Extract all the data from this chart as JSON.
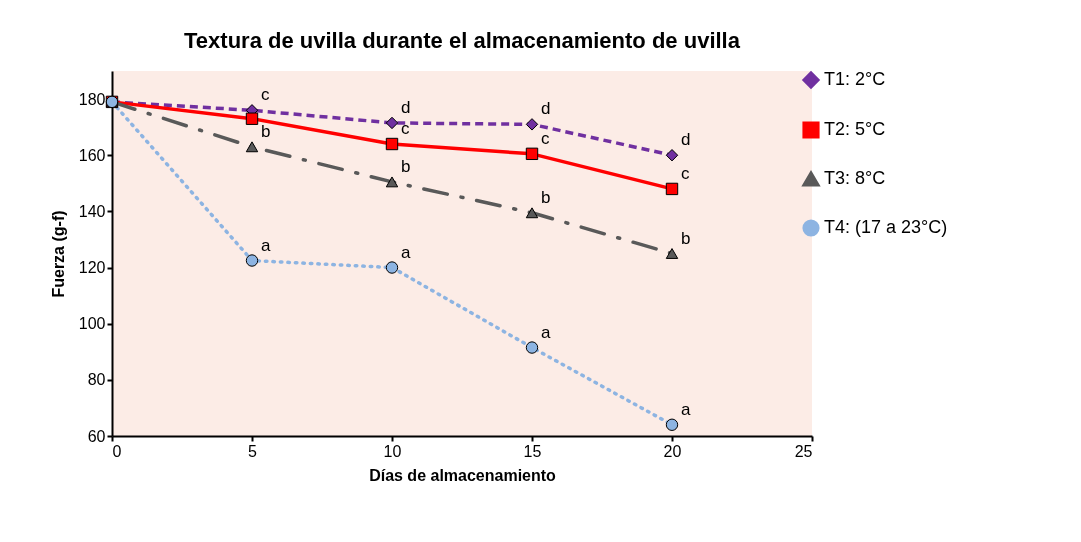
{
  "chart_data": {
    "type": "line",
    "title": "Textura de uvilla durante el almacenamiento de uvilla",
    "xlabel": "Días de almacenamiento",
    "ylabel": "Fuerza  (g-f)",
    "xlim": [
      0,
      25
    ],
    "xticks": [
      0,
      5,
      10,
      15,
      20,
      25
    ],
    "ylim": [
      60,
      190
    ],
    "yticks": [
      60,
      80,
      100,
      120,
      140,
      160,
      180
    ],
    "grid": false,
    "legend": "right",
    "series": [
      {
        "name": "T1: 2°C",
        "color": "#7030a0",
        "marker": "diamond",
        "line_style": "dashed",
        "x": [
          0,
          5,
          10,
          15,
          20
        ],
        "values": [
          179,
          176,
          171.5,
          171,
          160
        ]
      },
      {
        "name": "T2: 5°C",
        "color": "#ff0000",
        "marker": "square",
        "line_style": "solid",
        "x": [
          0,
          5,
          10,
          15,
          20
        ],
        "values": [
          179,
          173,
          164,
          160.5,
          148
        ]
      },
      {
        "name": "T3: 8°C",
        "color": "#595959",
        "marker": "triangle",
        "line_style": "dashdot",
        "x": [
          0,
          5,
          10,
          15,
          20
        ],
        "values": [
          179,
          163,
          150.5,
          139.5,
          125
        ]
      },
      {
        "name": "T4: (17 a 23°C)",
        "color": "#8db4e2",
        "marker": "circle",
        "line_style": "dotted",
        "x": [
          0,
          5,
          10,
          15,
          20
        ],
        "values": [
          179,
          122.5,
          120,
          91.5,
          64
        ]
      }
    ],
    "annotations": [
      {
        "text": "c",
        "x": 5,
        "y": 176
      },
      {
        "text": "d",
        "x": 10,
        "y": 171.5
      },
      {
        "text": "d",
        "x": 15,
        "y": 171
      },
      {
        "text": "d",
        "x": 20,
        "y": 160
      },
      {
        "text": "c",
        "x": 10,
        "y": 164
      },
      {
        "text": "c",
        "x": 15,
        "y": 160.5
      },
      {
        "text": "c",
        "x": 20,
        "y": 148
      },
      {
        "text": "b",
        "x": 5,
        "y": 163
      },
      {
        "text": "b",
        "x": 10,
        "y": 150.5
      },
      {
        "text": "b",
        "x": 15,
        "y": 139.5
      },
      {
        "text": "b",
        "x": 20,
        "y": 125
      },
      {
        "text": "a",
        "x": 5,
        "y": 122.5
      },
      {
        "text": "a",
        "x": 10,
        "y": 120
      },
      {
        "text": "a",
        "x": 15,
        "y": 91.5
      },
      {
        "text": "a",
        "x": 20,
        "y": 64
      }
    ]
  }
}
